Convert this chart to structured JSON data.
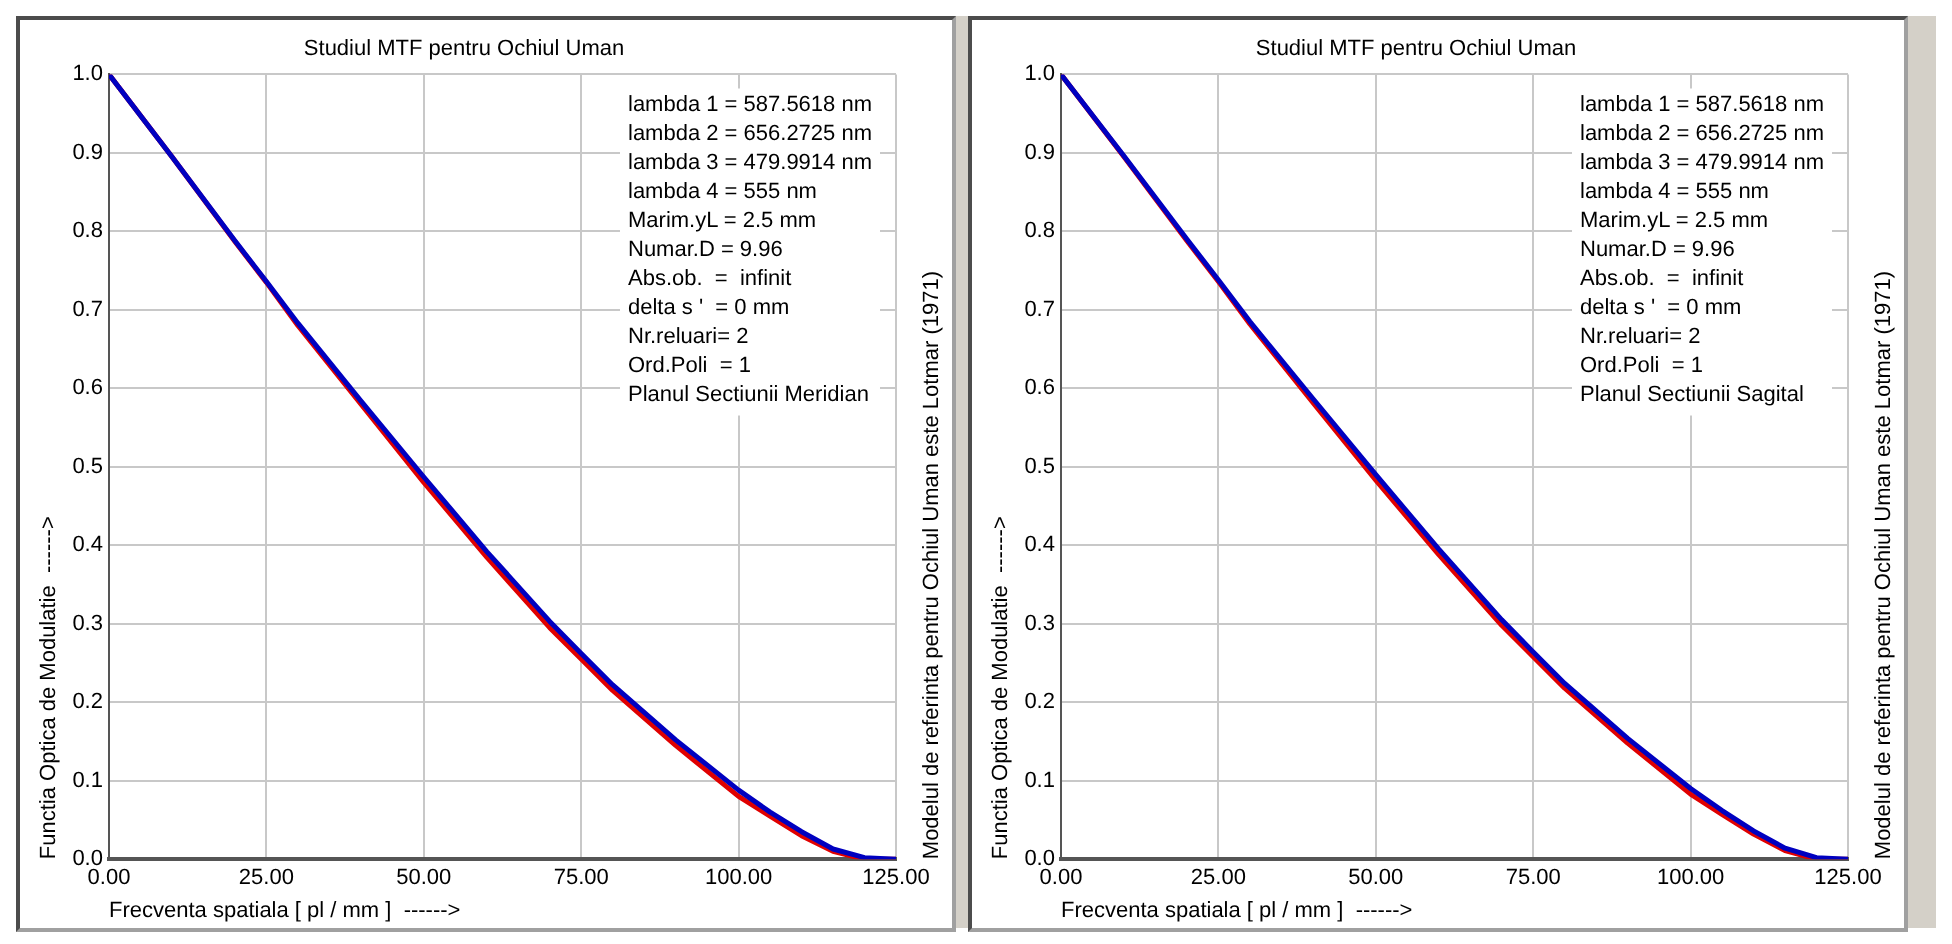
{
  "chart_data": [
    {
      "type": "line",
      "title": "Studiul MTF pentru Ochiul Uman",
      "xlabel": "Frecventa spatiala [ pl / mm ]  ------>",
      "ylabel": "Functia Optica de Modulatie  ------>",
      "y2label": "Modelul de referinta pentru Ochiul Uman este Lotmar (1971)",
      "annotations": [
        "lambda 1 = 587.5618 nm",
        "lambda 2 = 656.2725 nm",
        "lambda 3 = 479.9914 nm",
        "lambda 4 = 555 nm",
        "Marim.yL = 2.5 mm",
        "Numar.D = 9.96",
        "Abs.ob.  =  infinit",
        "delta s '  = 0 mm",
        "Nr.reluari= 2",
        "Ord.Poli  = 1",
        "Planul Sectiunii Meridian"
      ],
      "x": [
        0,
        10,
        20,
        25,
        30,
        40,
        50,
        60,
        70,
        75,
        80,
        90,
        100,
        105,
        110,
        115,
        120,
        125
      ],
      "series": [
        {
          "color": "#0000c0",
          "values": [
            1,
            0.895,
            0.788,
            0.736,
            0.683,
            0.584,
            0.487,
            0.392,
            0.303,
            0.262,
            0.222,
            0.152,
            0.088,
            0.06,
            0.035,
            0.013,
            0.002,
            0
          ]
        },
        {
          "color": "#e00000",
          "values": [
            1,
            0.895,
            0.787,
            0.735,
            0.68,
            0.58,
            0.48,
            0.385,
            0.295,
            0.255,
            0.215,
            0.145,
            0.08,
            0.055,
            0.03,
            0.01,
            0,
            0
          ]
        }
      ],
      "xlim": [
        0,
        125
      ],
      "xticks": [
        {
          "value": 0,
          "label": "0.00"
        },
        {
          "value": 25,
          "label": "25.00"
        },
        {
          "value": 50,
          "label": "50.00"
        },
        {
          "value": 75,
          "label": "75.00"
        },
        {
          "value": 100,
          "label": "100.00"
        },
        {
          "value": 125,
          "label": "125.00"
        }
      ],
      "ylim": [
        0,
        1
      ],
      "yticks": [
        {
          "value": 0,
          "label": "0.0"
        },
        {
          "value": 0.1,
          "label": "0.1"
        },
        {
          "value": 0.2,
          "label": "0.2"
        },
        {
          "value": 0.3,
          "label": "0.3"
        },
        {
          "value": 0.4,
          "label": "0.4"
        },
        {
          "value": 0.5,
          "label": "0.5"
        },
        {
          "value": 0.6,
          "label": "0.6"
        },
        {
          "value": 0.7,
          "label": "0.7"
        },
        {
          "value": 0.8,
          "label": "0.8"
        },
        {
          "value": 0.9,
          "label": "0.9"
        },
        {
          "value": 1,
          "label": "1.0"
        }
      ],
      "grid": true,
      "legend": false,
      "marker": "none",
      "line_style": "solid"
    },
    {
      "type": "line",
      "title": "Studiul MTF pentru Ochiul Uman",
      "xlabel": "Frecventa spatiala [ pl / mm ]  ------>",
      "ylabel": "Functia Optica de Modulatie  ------>",
      "y2label": "Modelul de referinta pentru Ochiul Uman este Lotmar (1971)",
      "annotations": [
        "lambda 1 = 587.5618 nm",
        "lambda 2 = 656.2725 nm",
        "lambda 3 = 479.9914 nm",
        "lambda 4 = 555 nm",
        "Marim.yL = 2.5 mm",
        "Numar.D = 9.96",
        "Abs.ob.  =  infinit",
        "delta s '  = 0 mm",
        "Nr.reluari= 2",
        "Ord.Poli  = 1",
        "Planul Sectiunii Sagital"
      ],
      "x": [
        0,
        10,
        20,
        25,
        30,
        40,
        50,
        60,
        70,
        75,
        80,
        90,
        100,
        105,
        110,
        115,
        120,
        125
      ],
      "series": [
        {
          "color": "#0000c0",
          "values": [
            1,
            0.896,
            0.79,
            0.738,
            0.685,
            0.587,
            0.49,
            0.395,
            0.305,
            0.264,
            0.224,
            0.154,
            0.09,
            0.062,
            0.036,
            0.014,
            0.002,
            0
          ]
        },
        {
          "color": "#e00000",
          "values": [
            1,
            0.895,
            0.788,
            0.736,
            0.682,
            0.582,
            0.483,
            0.388,
            0.298,
            0.258,
            0.218,
            0.148,
            0.083,
            0.057,
            0.032,
            0.011,
            0,
            0
          ]
        }
      ],
      "xlim": [
        0,
        125
      ],
      "xticks": [
        {
          "value": 0,
          "label": "0.00"
        },
        {
          "value": 25,
          "label": "25.00"
        },
        {
          "value": 50,
          "label": "50.00"
        },
        {
          "value": 75,
          "label": "75.00"
        },
        {
          "value": 100,
          "label": "100.00"
        },
        {
          "value": 125,
          "label": "125.00"
        }
      ],
      "ylim": [
        0,
        1
      ],
      "yticks": [
        {
          "value": 0,
          "label": "0.0"
        },
        {
          "value": 0.1,
          "label": "0.1"
        },
        {
          "value": 0.2,
          "label": "0.2"
        },
        {
          "value": 0.3,
          "label": "0.3"
        },
        {
          "value": 0.4,
          "label": "0.4"
        },
        {
          "value": 0.5,
          "label": "0.5"
        },
        {
          "value": 0.6,
          "label": "0.6"
        },
        {
          "value": 0.7,
          "label": "0.7"
        },
        {
          "value": 0.8,
          "label": "0.8"
        },
        {
          "value": 0.9,
          "label": "0.9"
        },
        {
          "value": 1,
          "label": "1.0"
        }
      ],
      "grid": true,
      "legend": false,
      "marker": "none",
      "line_style": "solid"
    }
  ]
}
